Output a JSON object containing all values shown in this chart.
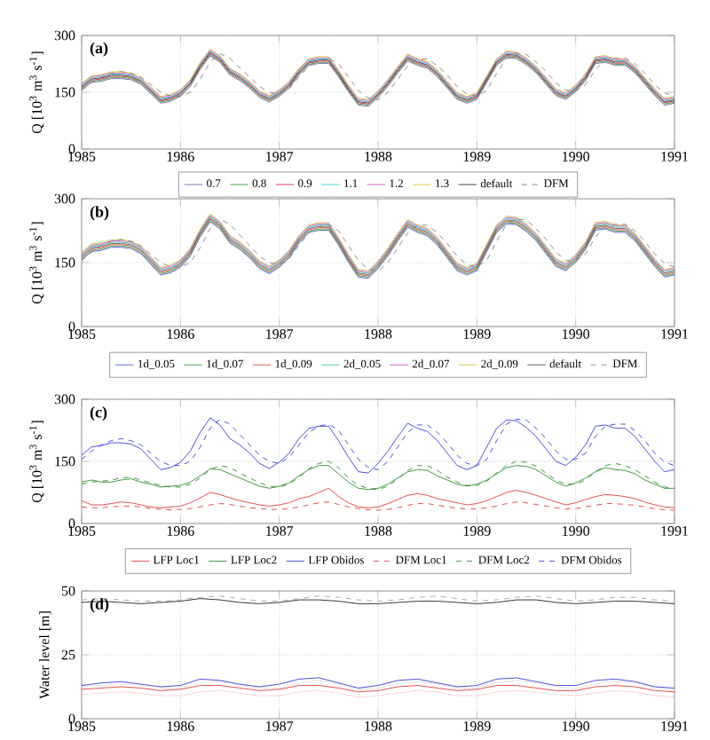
{
  "chart_data": [
    {
      "type": "line",
      "xlim": [
        1985,
        1991
      ],
      "xticks": [
        1985,
        1986,
        1987,
        1988,
        1989,
        1990,
        1991
      ],
      "ylim": [
        0,
        300
      ],
      "yticks": [
        0,
        150,
        300
      ],
      "ylabel": "Q [10$^{3}$ m$^{3}$ s$^{-1}$]",
      "annotations": [
        "(a)"
      ],
      "grid": true,
      "legend": "bottom",
      "x": [
        1985.0,
        1985.1,
        1985.2,
        1985.3,
        1985.4,
        1985.5,
        1985.6,
        1985.7,
        1985.8,
        1985.9,
        1986.0,
        1986.1,
        1986.2,
        1986.3,
        1986.4,
        1986.5,
        1986.6,
        1986.7,
        1986.8,
        1986.9,
        1987.0,
        1987.1,
        1987.2,
        1987.3,
        1987.4,
        1987.5,
        1987.6,
        1987.7,
        1987.8,
        1987.9,
        1988.0,
        1988.1,
        1988.2,
        1988.3,
        1988.4,
        1988.5,
        1988.6,
        1988.7,
        1988.8,
        1988.9,
        1989.0,
        1989.1,
        1989.2,
        1989.3,
        1989.4,
        1989.5,
        1989.6,
        1989.7,
        1989.8,
        1989.9,
        1990.0,
        1990.1,
        1990.2,
        1990.3,
        1990.4,
        1990.5,
        1990.6,
        1990.7,
        1990.8,
        1990.9,
        1991.0
      ],
      "series": [
        {
          "name": "0.7",
          "color": "#7b68b0",
          "line_style": "solid",
          "values": [
            156,
            176,
            179,
            186,
            186,
            183,
            171,
            146,
            121,
            126,
            139,
            166,
            211,
            246,
            229,
            196,
            181,
            161,
            136,
            124,
            139,
            161,
            196,
            221,
            226,
            226,
            191,
            151,
            116,
            113,
            136,
            166,
            201,
            233,
            221,
            213,
            191,
            161,
            131,
            121,
            131,
            176,
            221,
            241,
            239,
            223,
            201,
            171,
            141,
            131,
            151,
            181,
            226,
            229,
            221,
            221,
            201,
            171,
            141,
            116,
            121
          ]
        },
        {
          "name": "0.8",
          "color": "#3a9a3a",
          "line_style": "solid",
          "values": [
            159,
            179,
            182,
            189,
            189,
            186,
            174,
            149,
            124,
            129,
            142,
            169,
            214,
            249,
            232,
            199,
            184,
            164,
            139,
            127,
            142,
            164,
            199,
            224,
            229,
            229,
            194,
            154,
            119,
            116,
            139,
            169,
            204,
            236,
            224,
            216,
            194,
            164,
            134,
            124,
            134,
            179,
            224,
            244,
            242,
            226,
            204,
            174,
            144,
            134,
            154,
            184,
            229,
            232,
            224,
            224,
            204,
            174,
            144,
            119,
            124
          ]
        },
        {
          "name": "0.9",
          "color": "#d62a4a",
          "line_style": "solid",
          "values": [
            162,
            182,
            185,
            192,
            192,
            189,
            177,
            152,
            127,
            132,
            145,
            172,
            217,
            252,
            235,
            202,
            187,
            167,
            142,
            130,
            145,
            167,
            202,
            227,
            232,
            232,
            197,
            157,
            122,
            119,
            142,
            172,
            207,
            239,
            227,
            219,
            197,
            167,
            137,
            127,
            137,
            182,
            227,
            247,
            245,
            229,
            207,
            177,
            147,
            137,
            157,
            187,
            232,
            235,
            227,
            227,
            207,
            177,
            147,
            122,
            127
          ]
        },
        {
          "name": "1.1",
          "color": "#3cc8d8",
          "line_style": "solid",
          "values": [
            168,
            188,
            191,
            198,
            198,
            195,
            183,
            158,
            133,
            138,
            151,
            178,
            223,
            258,
            241,
            208,
            193,
            173,
            148,
            136,
            151,
            173,
            208,
            233,
            238,
            238,
            203,
            163,
            128,
            125,
            148,
            178,
            213,
            245,
            233,
            225,
            203,
            173,
            143,
            133,
            143,
            188,
            233,
            253,
            251,
            235,
            213,
            183,
            153,
            143,
            163,
            193,
            238,
            241,
            233,
            233,
            213,
            183,
            153,
            128,
            133
          ]
        },
        {
          "name": "1.2",
          "color": "#d050c8",
          "line_style": "solid",
          "values": [
            171,
            191,
            194,
            201,
            201,
            198,
            186,
            161,
            136,
            141,
            154,
            181,
            226,
            261,
            244,
            211,
            196,
            176,
            151,
            139,
            154,
            176,
            211,
            236,
            241,
            241,
            206,
            166,
            131,
            128,
            151,
            181,
            216,
            248,
            236,
            228,
            206,
            176,
            146,
            136,
            146,
            191,
            236,
            256,
            254,
            238,
            216,
            186,
            156,
            146,
            166,
            196,
            241,
            244,
            236,
            236,
            216,
            186,
            156,
            131,
            136
          ]
        },
        {
          "name": "1.3",
          "color": "#d8c030",
          "line_style": "solid",
          "values": [
            174,
            194,
            197,
            204,
            204,
            201,
            189,
            164,
            139,
            144,
            157,
            184,
            229,
            264,
            247,
            214,
            199,
            179,
            154,
            142,
            157,
            179,
            214,
            239,
            244,
            244,
            209,
            169,
            134,
            131,
            154,
            184,
            219,
            251,
            239,
            231,
            209,
            179,
            149,
            139,
            149,
            194,
            239,
            259,
            257,
            241,
            219,
            189,
            159,
            149,
            169,
            199,
            244,
            247,
            239,
            239,
            219,
            189,
            159,
            134,
            139
          ]
        },
        {
          "name": "default",
          "color": "#333333",
          "line_style": "solid",
          "values": [
            165,
            185,
            188,
            195,
            195,
            192,
            180,
            155,
            130,
            135,
            148,
            175,
            220,
            255,
            238,
            205,
            190,
            170,
            145,
            133,
            148,
            170,
            205,
            230,
            235,
            235,
            200,
            160,
            125,
            122,
            145,
            175,
            210,
            242,
            230,
            222,
            200,
            170,
            140,
            130,
            140,
            185,
            230,
            250,
            248,
            232,
            210,
            180,
            150,
            140,
            160,
            190,
            235,
            238,
            230,
            230,
            210,
            180,
            150,
            125,
            130
          ]
        },
        {
          "name": "DFM",
          "color": "#808080",
          "line_style": "dashed",
          "values": [
            155,
            175,
            190,
            200,
            205,
            200,
            190,
            170,
            150,
            140,
            140,
            150,
            185,
            230,
            252,
            240,
            215,
            190,
            165,
            150,
            145,
            160,
            190,
            220,
            235,
            240,
            225,
            190,
            155,
            135,
            130,
            150,
            185,
            220,
            238,
            238,
            220,
            195,
            165,
            145,
            140,
            155,
            200,
            240,
            252,
            250,
            230,
            205,
            175,
            155,
            155,
            170,
            210,
            235,
            240,
            240,
            225,
            200,
            170,
            148,
            140
          ]
        }
      ]
    },
    {
      "type": "line",
      "xlim": [
        1985,
        1991
      ],
      "xticks": [
        1985,
        1986,
        1987,
        1988,
        1989,
        1990,
        1991
      ],
      "ylim": [
        0,
        300
      ],
      "yticks": [
        0,
        150,
        300
      ],
      "ylabel": "Q [10$^{3}$ m$^{3}$ s$^{-1}$]",
      "annotations": [
        "(b)"
      ],
      "grid": true,
      "legend": "bottom",
      "x": [
        1985.0,
        1985.1,
        1985.2,
        1985.3,
        1985.4,
        1985.5,
        1985.6,
        1985.7,
        1985.8,
        1985.9,
        1986.0,
        1986.1,
        1986.2,
        1986.3,
        1986.4,
        1986.5,
        1986.6,
        1986.7,
        1986.8,
        1986.9,
        1987.0,
        1987.1,
        1987.2,
        1987.3,
        1987.4,
        1987.5,
        1987.6,
        1987.7,
        1987.8,
        1987.9,
        1988.0,
        1988.1,
        1988.2,
        1988.3,
        1988.4,
        1988.5,
        1988.6,
        1988.7,
        1988.8,
        1988.9,
        1989.0,
        1989.1,
        1989.2,
        1989.3,
        1989.4,
        1989.5,
        1989.6,
        1989.7,
        1989.8,
        1989.9,
        1990.0,
        1990.1,
        1990.2,
        1990.3,
        1990.4,
        1990.5,
        1990.6,
        1990.7,
        1990.8,
        1990.9,
        1991.0
      ],
      "series": [
        {
          "name": "1d_0.05",
          "color": "#4a5ad8",
          "line_style": "solid",
          "values": [
            156,
            176,
            179,
            186,
            186,
            183,
            171,
            146,
            121,
            126,
            139,
            166,
            211,
            246,
            229,
            196,
            181,
            161,
            136,
            124,
            139,
            161,
            196,
            221,
            226,
            226,
            191,
            151,
            116,
            113,
            136,
            166,
            201,
            233,
            221,
            213,
            191,
            161,
            131,
            121,
            131,
            176,
            221,
            241,
            239,
            223,
            201,
            171,
            141,
            131,
            151,
            181,
            226,
            229,
            221,
            221,
            201,
            171,
            141,
            116,
            121
          ]
        },
        {
          "name": "1d_0.07",
          "color": "#3a9a3a",
          "line_style": "solid",
          "values": [
            159,
            179,
            182,
            189,
            189,
            186,
            174,
            149,
            124,
            129,
            142,
            169,
            214,
            249,
            232,
            199,
            184,
            164,
            139,
            127,
            142,
            164,
            199,
            224,
            229,
            229,
            194,
            154,
            119,
            116,
            139,
            169,
            204,
            236,
            224,
            216,
            194,
            164,
            134,
            124,
            134,
            179,
            224,
            244,
            242,
            226,
            204,
            174,
            144,
            134,
            154,
            184,
            229,
            232,
            224,
            224,
            204,
            174,
            144,
            119,
            124
          ]
        },
        {
          "name": "1d_0.09",
          "color": "#e04a40",
          "line_style": "solid",
          "values": [
            162,
            182,
            185,
            192,
            192,
            189,
            177,
            152,
            127,
            132,
            145,
            172,
            217,
            252,
            235,
            202,
            187,
            167,
            142,
            130,
            145,
            167,
            202,
            227,
            232,
            232,
            197,
            157,
            122,
            119,
            142,
            172,
            207,
            239,
            227,
            219,
            197,
            167,
            137,
            127,
            137,
            182,
            227,
            247,
            245,
            229,
            207,
            177,
            147,
            137,
            157,
            187,
            232,
            235,
            227,
            227,
            207,
            177,
            147,
            122,
            127
          ]
        },
        {
          "name": "2d_0.05",
          "color": "#40c0b0",
          "line_style": "solid",
          "values": [
            168,
            188,
            191,
            198,
            198,
            195,
            183,
            158,
            133,
            138,
            151,
            178,
            223,
            258,
            241,
            208,
            193,
            173,
            148,
            136,
            151,
            173,
            208,
            233,
            238,
            238,
            203,
            163,
            128,
            125,
            148,
            178,
            213,
            245,
            233,
            225,
            203,
            173,
            143,
            133,
            143,
            188,
            233,
            253,
            251,
            235,
            213,
            183,
            153,
            143,
            163,
            193,
            238,
            241,
            233,
            233,
            213,
            183,
            153,
            128,
            133
          ]
        },
        {
          "name": "2d_0.07",
          "color": "#d050c8",
          "line_style": "solid",
          "values": [
            171,
            191,
            194,
            201,
            201,
            198,
            186,
            161,
            136,
            141,
            154,
            181,
            226,
            261,
            244,
            211,
            196,
            176,
            151,
            139,
            154,
            176,
            211,
            236,
            241,
            241,
            206,
            166,
            131,
            128,
            151,
            181,
            216,
            248,
            236,
            228,
            206,
            176,
            146,
            136,
            146,
            191,
            236,
            256,
            254,
            238,
            216,
            186,
            156,
            146,
            166,
            196,
            241,
            244,
            236,
            236,
            216,
            186,
            156,
            131,
            136
          ]
        },
        {
          "name": "2d_0.09",
          "color": "#c8c040",
          "line_style": "solid",
          "values": [
            174,
            194,
            197,
            204,
            204,
            201,
            189,
            164,
            139,
            144,
            157,
            184,
            229,
            264,
            247,
            214,
            199,
            179,
            154,
            142,
            157,
            179,
            214,
            239,
            244,
            244,
            209,
            169,
            134,
            131,
            154,
            184,
            219,
            251,
            239,
            231,
            209,
            179,
            149,
            139,
            149,
            194,
            239,
            259,
            257,
            241,
            219,
            189,
            159,
            149,
            169,
            199,
            244,
            247,
            239,
            239,
            219,
            189,
            159,
            134,
            139
          ]
        },
        {
          "name": "default",
          "color": "#555555",
          "line_style": "solid",
          "values": [
            165,
            185,
            188,
            195,
            195,
            192,
            180,
            155,
            130,
            135,
            148,
            175,
            220,
            255,
            238,
            205,
            190,
            170,
            145,
            133,
            148,
            170,
            205,
            230,
            235,
            235,
            200,
            160,
            125,
            122,
            145,
            175,
            210,
            242,
            230,
            222,
            200,
            170,
            140,
            130,
            140,
            185,
            230,
            250,
            248,
            232,
            210,
            180,
            150,
            140,
            160,
            190,
            235,
            238,
            230,
            230,
            210,
            180,
            150,
            125,
            130
          ]
        },
        {
          "name": "DFM",
          "color": "#808080",
          "line_style": "dashed",
          "values": [
            155,
            175,
            190,
            200,
            205,
            200,
            190,
            170,
            150,
            140,
            140,
            150,
            185,
            230,
            252,
            240,
            215,
            190,
            165,
            150,
            145,
            160,
            190,
            220,
            235,
            240,
            225,
            190,
            155,
            135,
            130,
            150,
            185,
            220,
            238,
            238,
            220,
            195,
            165,
            145,
            140,
            155,
            200,
            240,
            252,
            250,
            230,
            205,
            175,
            155,
            155,
            170,
            210,
            235,
            240,
            240,
            225,
            200,
            170,
            148,
            140
          ]
        }
      ]
    },
    {
      "type": "line",
      "xlim": [
        1985,
        1991
      ],
      "xticks": [
        1985,
        1986,
        1987,
        1988,
        1989,
        1990,
        1991
      ],
      "ylim": [
        0,
        300
      ],
      "yticks": [
        0,
        150,
        300
      ],
      "ylabel": "Q [10$^{3}$ m$^{3}$ s$^{-1}$]",
      "annotations": [
        "(c)"
      ],
      "grid": true,
      "legend": "bottom",
      "x": [
        1985.0,
        1985.1,
        1985.2,
        1985.3,
        1985.4,
        1985.5,
        1985.6,
        1985.7,
        1985.8,
        1985.9,
        1986.0,
        1986.1,
        1986.2,
        1986.3,
        1986.4,
        1986.5,
        1986.6,
        1986.7,
        1986.8,
        1986.9,
        1987.0,
        1987.1,
        1987.2,
        1987.3,
        1987.4,
        1987.5,
        1987.6,
        1987.7,
        1987.8,
        1987.9,
        1988.0,
        1988.1,
        1988.2,
        1988.3,
        1988.4,
        1988.5,
        1988.6,
        1988.7,
        1988.8,
        1988.9,
        1989.0,
        1989.1,
        1989.2,
        1989.3,
        1989.4,
        1989.5,
        1989.6,
        1989.7,
        1989.8,
        1989.9,
        1990.0,
        1990.1,
        1990.2,
        1990.3,
        1990.4,
        1990.5,
        1990.6,
        1990.7,
        1990.8,
        1990.9,
        1991.0
      ],
      "series": [
        {
          "name": "LFP Loc1",
          "color": "#e03c3c",
          "line_style": "solid",
          "values": [
            55,
            45,
            45,
            48,
            52,
            50,
            45,
            40,
            38,
            40,
            42,
            50,
            62,
            75,
            70,
            62,
            55,
            50,
            45,
            42,
            45,
            50,
            60,
            65,
            75,
            85,
            65,
            50,
            40,
            38,
            40,
            48,
            58,
            68,
            72,
            68,
            60,
            55,
            50,
            45,
            48,
            55,
            65,
            75,
            80,
            75,
            68,
            60,
            52,
            45,
            50,
            58,
            65,
            70,
            68,
            65,
            60,
            52,
            45,
            40,
            38
          ]
        },
        {
          "name": "LFP Loc2",
          "color": "#2e8b2e",
          "line_style": "solid",
          "values": [
            100,
            105,
            100,
            100,
            105,
            108,
            100,
            95,
            88,
            90,
            92,
            100,
            115,
            132,
            130,
            120,
            110,
            100,
            90,
            85,
            90,
            98,
            115,
            130,
            140,
            140,
            120,
            100,
            85,
            82,
            85,
            95,
            110,
            125,
            130,
            128,
            115,
            105,
            95,
            90,
            95,
            105,
            120,
            135,
            140,
            138,
            130,
            115,
            100,
            90,
            98,
            110,
            125,
            135,
            130,
            128,
            120,
            105,
            95,
            85,
            85
          ]
        },
        {
          "name": "LFP Obidos",
          "color": "#3a3ad8",
          "line_style": "solid",
          "values": [
            165,
            185,
            188,
            195,
            195,
            192,
            180,
            155,
            130,
            135,
            148,
            175,
            220,
            255,
            238,
            205,
            190,
            170,
            145,
            133,
            148,
            170,
            205,
            230,
            235,
            235,
            200,
            160,
            125,
            122,
            145,
            175,
            210,
            242,
            230,
            222,
            200,
            170,
            140,
            130,
            140,
            185,
            230,
            250,
            248,
            232,
            210,
            180,
            150,
            140,
            160,
            190,
            235,
            238,
            230,
            230,
            210,
            180,
            150,
            125,
            130
          ]
        },
        {
          "name": "DFM Loc1",
          "color": "#e03c3c",
          "line_style": "dashed",
          "values": [
            40,
            38,
            38,
            40,
            42,
            42,
            40,
            36,
            34,
            33,
            34,
            36,
            40,
            45,
            48,
            46,
            42,
            38,
            36,
            34,
            34,
            36,
            40,
            45,
            50,
            52,
            46,
            40,
            36,
            33,
            32,
            34,
            38,
            44,
            48,
            48,
            44,
            40,
            37,
            35,
            35,
            38,
            42,
            48,
            52,
            50,
            46,
            42,
            38,
            35,
            36,
            40,
            44,
            48,
            48,
            46,
            44,
            40,
            36,
            33,
            32
          ]
        },
        {
          "name": "DFM Loc2",
          "color": "#2e8b2e",
          "line_style": "dashed",
          "values": [
            95,
            100,
            102,
            105,
            110,
            112,
            105,
            98,
            92,
            88,
            88,
            95,
            110,
            130,
            140,
            135,
            122,
            110,
            98,
            90,
            88,
            95,
            112,
            132,
            145,
            150,
            135,
            110,
            92,
            85,
            82,
            90,
            108,
            128,
            140,
            140,
            128,
            112,
            100,
            92,
            92,
            102,
            122,
            140,
            150,
            148,
            138,
            122,
            105,
            95,
            95,
            105,
            125,
            140,
            145,
            140,
            130,
            115,
            100,
            88,
            85
          ]
        },
        {
          "name": "DFM Obidos",
          "color": "#3a3ad8",
          "line_style": "dashed",
          "values": [
            155,
            175,
            190,
            200,
            205,
            200,
            190,
            170,
            150,
            140,
            140,
            150,
            185,
            230,
            252,
            240,
            215,
            190,
            165,
            150,
            145,
            160,
            190,
            220,
            235,
            240,
            225,
            190,
            155,
            135,
            130,
            150,
            185,
            220,
            238,
            238,
            220,
            195,
            165,
            145,
            140,
            155,
            200,
            240,
            252,
            250,
            230,
            205,
            175,
            155,
            155,
            170,
            210,
            235,
            240,
            240,
            225,
            200,
            170,
            148,
            140
          ]
        }
      ]
    },
    {
      "type": "line",
      "xlim": [
        1985,
        1991
      ],
      "xticks": [
        1985,
        1986,
        1987,
        1988,
        1989,
        1990,
        1991
      ],
      "ylim": [
        0,
        50
      ],
      "yticks": [
        0,
        25,
        50
      ],
      "ylabel": "Water level [m]",
      "annotations": [
        "(d)"
      ],
      "grid": true,
      "x": [
        1985.0,
        1985.2,
        1985.4,
        1985.6,
        1985.8,
        1986.0,
        1986.2,
        1986.4,
        1986.6,
        1986.8,
        1987.0,
        1987.2,
        1987.4,
        1987.6,
        1987.8,
        1988.0,
        1988.2,
        1988.4,
        1988.6,
        1988.8,
        1989.0,
        1989.2,
        1989.4,
        1989.6,
        1989.8,
        1990.0,
        1990.2,
        1990.4,
        1990.6,
        1990.8,
        1991.0
      ],
      "series": [
        {
          "color": "#222222",
          "line_style": "solid",
          "values": [
            45.5,
            46,
            45.5,
            45,
            45.5,
            46,
            47,
            46.5,
            45.5,
            45,
            45.5,
            46.5,
            46.5,
            46,
            45,
            45,
            45.5,
            46,
            46,
            45.5,
            45,
            45.5,
            46.5,
            46.5,
            45.5,
            45,
            45.5,
            46,
            46,
            45.5,
            45
          ]
        },
        {
          "color": "#a0a0a0",
          "line_style": "dashed",
          "values": [
            46.5,
            47,
            46.5,
            46,
            46,
            46.5,
            47.5,
            48,
            47,
            46,
            46,
            47,
            48,
            47.5,
            46.5,
            46,
            46.5,
            47.5,
            48,
            47,
            46,
            46.5,
            47.5,
            48,
            47,
            46,
            46.5,
            47.5,
            47.5,
            46.5,
            46
          ]
        },
        {
          "color": "#3a3ad8",
          "line_style": "solid",
          "values": [
            13,
            14,
            14.5,
            13.5,
            12.5,
            13,
            15.5,
            15,
            13.5,
            12.5,
            13.5,
            15.5,
            16,
            14,
            12,
            13,
            15,
            15.5,
            14,
            12.5,
            13,
            15.5,
            16,
            14.5,
            13,
            13,
            15,
            15.5,
            14.5,
            12.5,
            12
          ]
        },
        {
          "color": "#a0a0a0",
          "line_style": "dotted",
          "values": [
            12.5,
            13,
            13.5,
            13,
            12,
            12,
            14,
            14.5,
            13,
            12,
            12,
            14,
            15,
            13.5,
            11.5,
            12,
            13.5,
            14.5,
            13.5,
            12,
            12,
            14,
            15,
            14,
            12.5,
            12,
            13.5,
            14.5,
            14,
            12,
            11.5
          ]
        },
        {
          "color": "#e03c3c",
          "line_style": "solid",
          "values": [
            11.5,
            12,
            12.5,
            12,
            11,
            11.5,
            13,
            13,
            12,
            11,
            11.5,
            13,
            13,
            12,
            10.5,
            11,
            12.5,
            13,
            12,
            11,
            11.5,
            13,
            13,
            12,
            11,
            11,
            12.5,
            13,
            12.5,
            11,
            10.5
          ]
        },
        {
          "color": "#f07070",
          "line_style": "dotted",
          "values": [
            9.5,
            10,
            10.5,
            10,
            9,
            9,
            10.5,
            11,
            10,
            9,
            9,
            10.5,
            11,
            10,
            8.5,
            9,
            10,
            11,
            10.5,
            9,
            9,
            10.5,
            11,
            10.5,
            9.5,
            9,
            10,
            11,
            10.5,
            9,
            8.5
          ]
        }
      ]
    }
  ]
}
